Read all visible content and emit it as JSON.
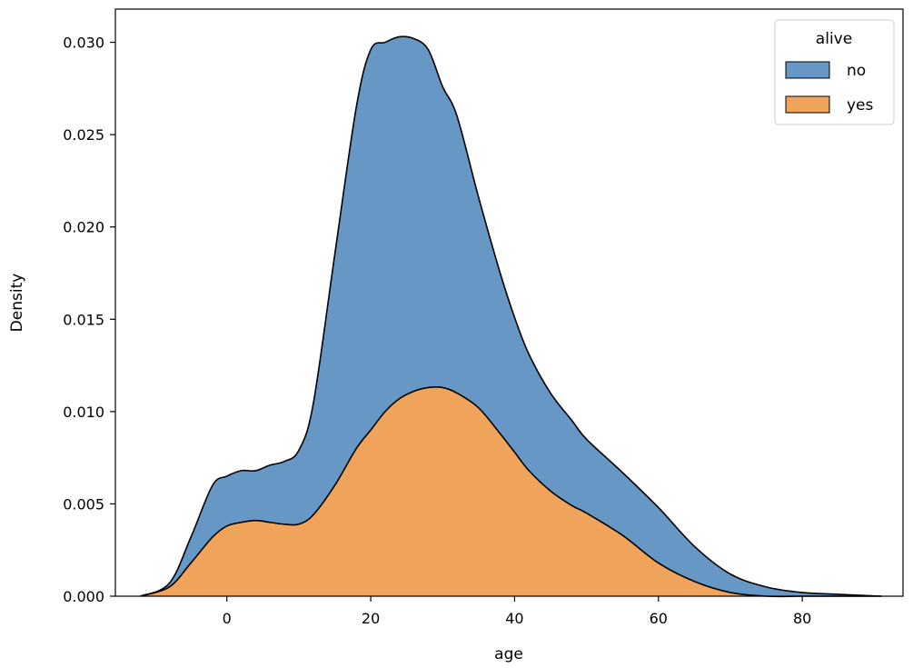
{
  "chart_data": {
    "type": "area",
    "stacked": true,
    "xlabel": "age",
    "ylabel": "Density",
    "xlim": [
      -15.5,
      94
    ],
    "ylim": [
      0,
      0.0318
    ],
    "xticks": [
      0,
      20,
      40,
      60,
      80
    ],
    "yticks": [
      0.0,
      0.005,
      0.01,
      0.015,
      0.02,
      0.025,
      0.03
    ],
    "grid": false,
    "legend": {
      "title": "alive",
      "placement": "top-right"
    },
    "x": [
      -12,
      -8,
      -5,
      -2,
      0,
      2,
      4,
      6,
      8,
      10,
      12,
      15,
      18,
      20,
      22,
      24,
      26,
      28,
      30,
      32,
      35,
      38,
      40,
      42,
      45,
      48,
      50,
      55,
      60,
      65,
      70,
      75,
      80,
      85,
      91
    ],
    "series": [
      {
        "name": "yes",
        "color": "#F0A35A",
        "values": [
          0.0,
          0.0005,
          0.0018,
          0.0032,
          0.0038,
          0.004,
          0.0041,
          0.004,
          0.0039,
          0.0039,
          0.0044,
          0.006,
          0.008,
          0.009,
          0.01,
          0.0107,
          0.0111,
          0.0113,
          0.0113,
          0.011,
          0.0102,
          0.0088,
          0.0078,
          0.0068,
          0.0057,
          0.0049,
          0.0045,
          0.0033,
          0.0018,
          0.0008,
          0.0002,
          0.0,
          0.0,
          0.0,
          0.0
        ]
      },
      {
        "name": "no",
        "color": "#6697C5",
        "values": [
          0.0,
          0.0002,
          0.0014,
          0.0028,
          0.0027,
          0.0028,
          0.0027,
          0.0031,
          0.0034,
          0.004,
          0.006,
          0.0125,
          0.0185,
          0.0206,
          0.02,
          0.0196,
          0.0191,
          0.0183,
          0.0163,
          0.015,
          0.0114,
          0.0087,
          0.0073,
          0.0063,
          0.0053,
          0.0046,
          0.004,
          0.0034,
          0.003,
          0.0019,
          0.001,
          0.0005,
          0.0002,
          0.0001,
          0.0
        ]
      }
    ]
  }
}
